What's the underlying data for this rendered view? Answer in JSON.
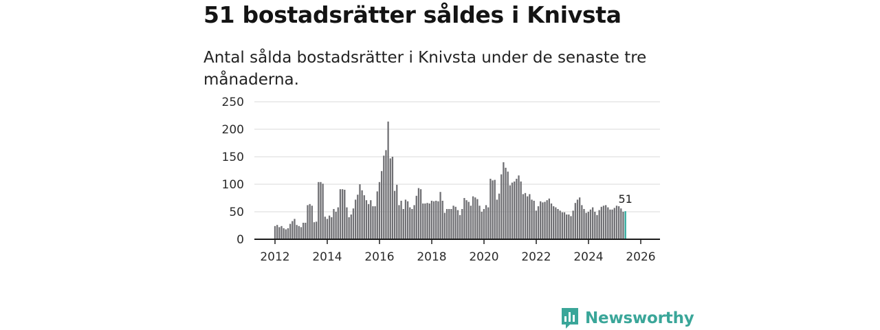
{
  "title": "51 bostadsrätter såldes i Knivsta",
  "subtitle": "Antal sålda bostadsrätter i Knivsta under de senaste tre månaderna.",
  "brand": {
    "name": "Newsworthy",
    "color": "#3aa699",
    "icon": "newsworthy-logo-icon"
  },
  "chart_data": {
    "type": "bar",
    "title": "51 bostadsrätter såldes i Knivsta",
    "xlabel": "",
    "ylabel": "",
    "ylim": [
      0,
      250
    ],
    "yticks": [
      0,
      50,
      100,
      150,
      200,
      250
    ],
    "xticks": [
      2012,
      2014,
      2016,
      2018,
      2020,
      2022,
      2024,
      2026
    ],
    "x_start": 2012.0,
    "x_step": 0.0833,
    "bar_color": "#6f6f73",
    "highlight_color": "#2aa89a",
    "highlight_label": "51",
    "values": [
      24,
      26,
      22,
      24,
      20,
      18,
      20,
      28,
      33,
      37,
      26,
      24,
      22,
      30,
      30,
      62,
      64,
      61,
      31,
      32,
      104,
      104,
      101,
      41,
      37,
      43,
      40,
      55,
      50,
      58,
      91,
      91,
      90,
      58,
      40,
      45,
      56,
      72,
      81,
      100,
      89,
      80,
      71,
      64,
      71,
      60,
      60,
      87,
      104,
      124,
      152,
      162,
      214,
      147,
      150,
      88,
      99,
      62,
      70,
      55,
      72,
      69,
      58,
      55,
      62,
      79,
      93,
      91,
      65,
      65,
      66,
      65,
      70,
      69,
      70,
      69,
      86,
      70,
      48,
      55,
      55,
      55,
      61,
      59,
      53,
      44,
      55,
      75,
      71,
      68,
      61,
      78,
      76,
      73,
      61,
      50,
      55,
      62,
      58,
      110,
      107,
      108,
      72,
      83,
      118,
      140,
      130,
      123,
      98,
      103,
      105,
      110,
      116,
      105,
      82,
      84,
      78,
      82,
      72,
      70,
      52,
      60,
      69,
      67,
      68,
      71,
      74,
      65,
      60,
      58,
      55,
      52,
      49,
      49,
      45,
      45,
      42,
      52,
      66,
      72,
      76,
      62,
      55,
      48,
      50,
      54,
      58,
      50,
      44,
      53,
      59,
      61,
      62,
      58,
      54,
      54,
      57,
      61,
      60,
      56,
      50,
      51
    ]
  }
}
